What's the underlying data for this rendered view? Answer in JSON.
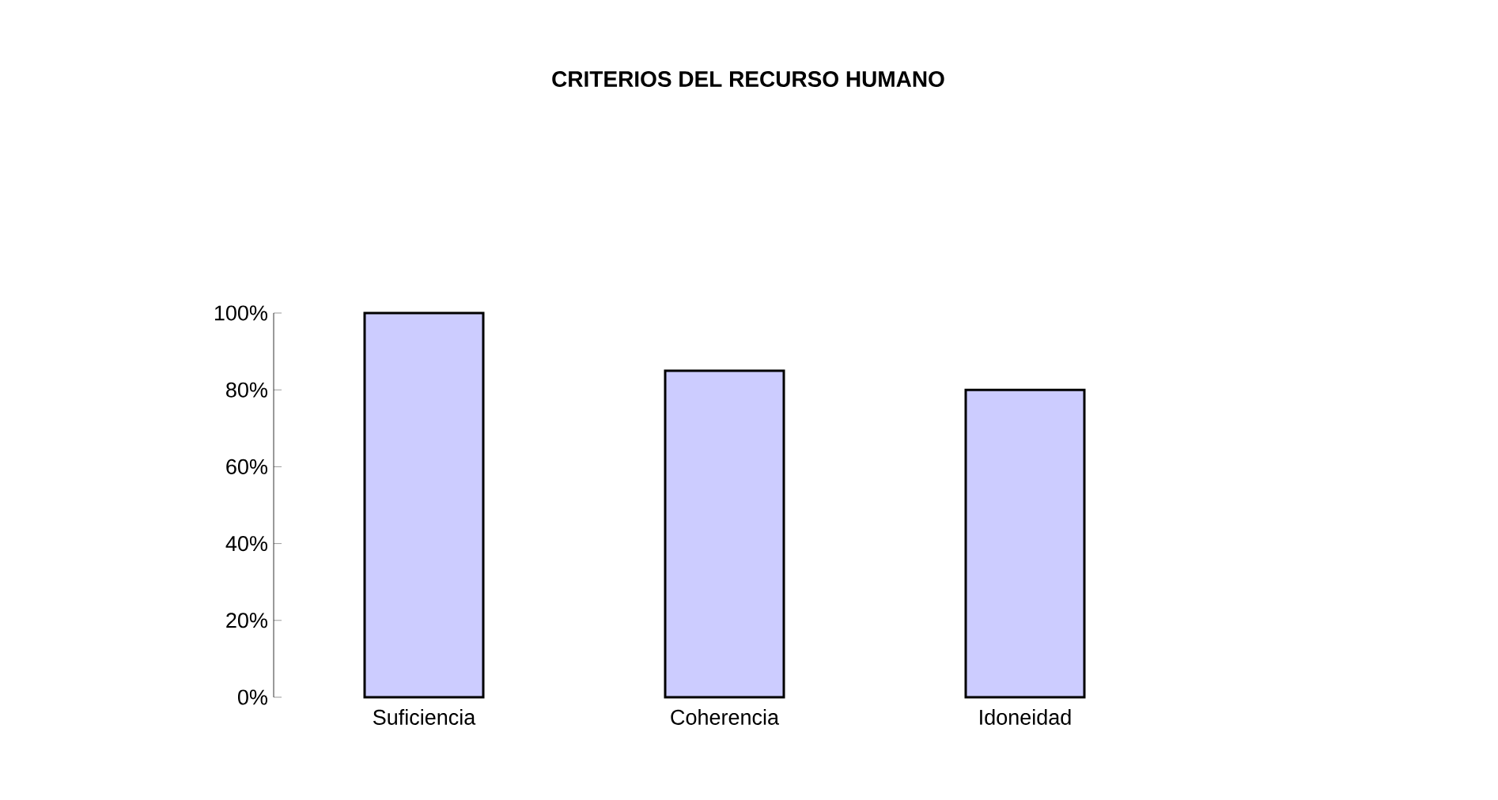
{
  "chart_data": {
    "type": "bar",
    "title": "CRITERIOS DEL RECURSO HUMANO",
    "categories": [
      "Suficiencia",
      "Coherencia",
      "Idoneidad"
    ],
    "values": [
      100,
      85,
      80
    ],
    "color": "#ccccff",
    "ylim": [
      0,
      100
    ],
    "yticks": [
      {
        "value": 0,
        "label": "0%"
      },
      {
        "value": 20,
        "label": "20%"
      },
      {
        "value": 40,
        "label": "40%"
      },
      {
        "value": 60,
        "label": "60%"
      },
      {
        "value": 80,
        "label": "80%"
      },
      {
        "value": 100,
        "label": "100%"
      }
    ],
    "grid": false
  }
}
